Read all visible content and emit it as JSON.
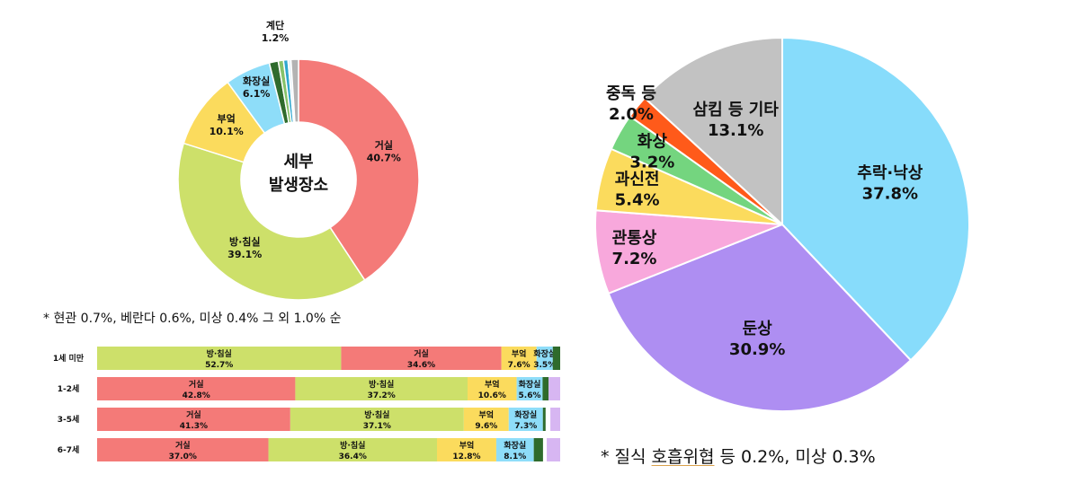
{
  "chart_data": [
    {
      "type": "pie",
      "subtype": "donut",
      "center_label": [
        "세부",
        "발생장소"
      ],
      "slices": [
        {
          "label": "거실",
          "value": 40.7,
          "value_label": "40.7%",
          "color": "#F47A78"
        },
        {
          "label": "방·침실",
          "value": 39.1,
          "value_label": "39.1%",
          "color": "#CDE06A"
        },
        {
          "label": "부엌",
          "value": 10.1,
          "value_label": "10.1%",
          "color": "#FBDB5D"
        },
        {
          "label": "화장실",
          "value": 6.1,
          "value_label": "6.1%",
          "color": "#8EDDF9"
        },
        {
          "label": "계단",
          "value": 1.2,
          "value_label": "1.2%",
          "color": "#2F6B2C"
        },
        {
          "label": "",
          "value": 0.7,
          "value_label": "",
          "color": "#86C26A"
        },
        {
          "label": "",
          "value": 0.6,
          "value_label": "",
          "color": "#2FA7CF"
        },
        {
          "label": "",
          "value": 0.4,
          "value_label": "",
          "color": "#E7F3FA"
        },
        {
          "label": "",
          "value": 1.0,
          "value_label": "",
          "color": "#B3B3B3"
        }
      ],
      "note": "* 현관 0.7%, 베란다 0.6%, 미상 0.4% 그 외 1.0% 순"
    },
    {
      "type": "bar",
      "orientation": "horizontal",
      "stacked": true,
      "rows": [
        {
          "label": "1세 미만",
          "segments": [
            {
              "name": "방·침실",
              "value": 52.7,
              "value_label": "52.7%",
              "color": "#CDE06A"
            },
            {
              "name": "거실",
              "value": 34.6,
              "value_label": "34.6%",
              "color": "#F47A78"
            },
            {
              "name": "부엌",
              "value": 7.6,
              "value_label": "7.6%",
              "color": "#FBDB5D"
            },
            {
              "name": "화장실",
              "value": 3.5,
              "value_label": "3.5%",
              "color": "#8EDDF9"
            },
            {
              "name": "",
              "value": 1.6,
              "value_label": "",
              "color": "#2F6B2C"
            }
          ]
        },
        {
          "label": "1-2세",
          "segments": [
            {
              "name": "거실",
              "value": 42.8,
              "value_label": "42.8%",
              "color": "#F47A78"
            },
            {
              "name": "방·침실",
              "value": 37.2,
              "value_label": "37.2%",
              "color": "#CDE06A"
            },
            {
              "name": "부엌",
              "value": 10.6,
              "value_label": "10.6%",
              "color": "#FBDB5D"
            },
            {
              "name": "화장실",
              "value": 5.6,
              "value_label": "5.6%",
              "color": "#8EDDF9"
            },
            {
              "name": "",
              "value": 1.3,
              "value_label": "",
              "color": "#2F6B2C"
            },
            {
              "name": "",
              "value": 2.5,
              "value_label": "",
              "color": "#D7B6F2"
            }
          ]
        },
        {
          "label": "3-5세",
          "segments": [
            {
              "name": "거실",
              "value": 41.3,
              "value_label": "41.3%",
              "color": "#F47A78"
            },
            {
              "name": "방·침실",
              "value": 37.1,
              "value_label": "37.1%",
              "color": "#CDE06A"
            },
            {
              "name": "부엌",
              "value": 9.6,
              "value_label": "9.6%",
              "color": "#FBDB5D"
            },
            {
              "name": "화장실",
              "value": 7.3,
              "value_label": "7.3%",
              "color": "#8EDDF9"
            },
            {
              "name": "",
              "value": 0.6,
              "value_label": "",
              "color": "#2F6B2C"
            },
            {
              "name": "",
              "value": 1.0,
              "value_label": "",
              "color": "#FFFFFF"
            },
            {
              "name": "",
              "value": 2.1,
              "value_label": "",
              "color": "#D7B6F2"
            }
          ]
        },
        {
          "label": "6-7세",
          "segments": [
            {
              "name": "거실",
              "value": 37.0,
              "value_label": "37.0%",
              "color": "#F47A78"
            },
            {
              "name": "방·침실",
              "value": 36.4,
              "value_label": "36.4%",
              "color": "#CDE06A"
            },
            {
              "name": "부엌",
              "value": 12.8,
              "value_label": "12.8%",
              "color": "#FBDB5D"
            },
            {
              "name": "화장실",
              "value": 8.1,
              "value_label": "8.1%",
              "color": "#8EDDF9"
            },
            {
              "name": "",
              "value": 2.0,
              "value_label": "",
              "color": "#2F6B2C"
            },
            {
              "name": "",
              "value": 0.8,
              "value_label": "",
              "color": "#FFFFFF"
            },
            {
              "name": "",
              "value": 2.9,
              "value_label": "",
              "color": "#D7B6F2"
            }
          ]
        }
      ]
    },
    {
      "type": "pie",
      "slices": [
        {
          "label": "추락·낙상",
          "value": 37.8,
          "value_label": "37.8%",
          "color": "#87DCFB"
        },
        {
          "label": "둔상",
          "value": 30.9,
          "value_label": "30.9%",
          "color": "#AE8EF2"
        },
        {
          "label": "관통상",
          "value": 7.2,
          "value_label": "7.2%",
          "color": "#F8A8DC"
        },
        {
          "label": "과신전",
          "value": 5.4,
          "value_label": "5.4%",
          "color": "#FBDB5D"
        },
        {
          "label": "화상",
          "value": 3.2,
          "value_label": "3.2%",
          "color": "#74D57F"
        },
        {
          "label": "중독 등",
          "value": 2.0,
          "value_label": "2.0%",
          "color": "#FF5A1A"
        },
        {
          "label": "삼킴 등 기타",
          "value": 13.1,
          "value_label": "13.1%",
          "color": "#C2C2C2"
        }
      ],
      "note_parts": [
        "* 질식 ",
        "호흡위협",
        " 등 0.2%, 미상 0.3%"
      ]
    }
  ]
}
